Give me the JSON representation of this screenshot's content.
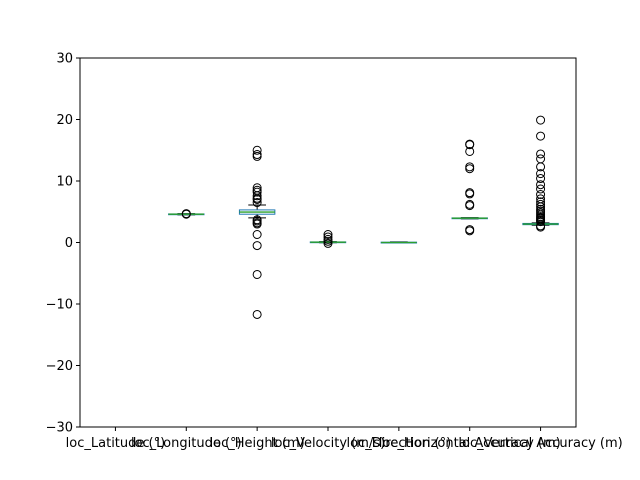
{
  "chart_data": {
    "type": "box",
    "title": "",
    "xlabel": "",
    "ylabel": "",
    "ylim": [
      -30,
      30
    ],
    "yticks": [
      -30,
      -20,
      -10,
      0,
      10,
      20,
      30
    ],
    "ytick_labels": [
      "−30",
      "−20",
      "−10",
      "0",
      "10",
      "20",
      "30"
    ],
    "grid": false,
    "legend": "none",
    "colors": {
      "box": "#1f77b4",
      "median": "#2ca02c",
      "whisker": "#000000",
      "flier": "#000000"
    },
    "categories": [
      "loc_Latitude (°)",
      "loc_Longitude (°)",
      "loc_Height (m)",
      "loc_Velocity (m/s)",
      "loc_Direction (°)",
      "loc_Horizontal Accuracy (m)",
      "loc_Vertical Accuracy (m)"
    ],
    "boxes": [
      {
        "q1": null,
        "median": null,
        "q3": null,
        "whislo": null,
        "whishi": null,
        "fliers": []
      },
      {
        "q1": 4.55,
        "median": 4.6,
        "q3": 4.65,
        "whislo": 4.5,
        "whishi": 4.7,
        "fliers": [
          4.6,
          4.7
        ]
      },
      {
        "q1": 4.6,
        "median": 4.95,
        "q3": 5.3,
        "whislo": 4.0,
        "whishi": 6.1,
        "fliers": [
          15.0,
          14.3,
          14.0,
          8.9,
          8.5,
          8.2,
          7.6,
          7.2,
          7.0,
          6.5,
          3.7,
          3.5,
          3.2,
          3.0,
          1.3,
          -0.5,
          -5.2,
          -11.7
        ]
      },
      {
        "q1": 0.0,
        "median": 0.05,
        "q3": 0.1,
        "whislo": -0.05,
        "whishi": 0.15,
        "fliers": [
          1.3,
          0.9,
          0.5,
          0.2,
          -0.15
        ]
      },
      {
        "q1": 0.0,
        "median": 0.0,
        "q3": 0.05,
        "whislo": -0.05,
        "whishi": 0.1,
        "fliers": []
      },
      {
        "q1": 3.9,
        "median": 3.95,
        "q3": 4.0,
        "whislo": 3.85,
        "whishi": 4.05,
        "fliers": [
          16.0,
          15.9,
          14.8,
          12.3,
          12.0,
          8.1,
          7.9,
          6.2,
          6.0,
          2.1,
          1.9
        ]
      },
      {
        "q1": 2.9,
        "median": 3.0,
        "q3": 3.1,
        "whislo": 2.8,
        "whishi": 3.2,
        "fliers": [
          19.9,
          17.3,
          14.4,
          13.6,
          12.3,
          11.2,
          10.4,
          9.4,
          8.7,
          7.8,
          7.1,
          6.6,
          6.2,
          5.8,
          5.4,
          5.1,
          4.8,
          4.5,
          4.2,
          4.0,
          3.8,
          3.6,
          3.4,
          2.7,
          2.5
        ]
      }
    ]
  }
}
